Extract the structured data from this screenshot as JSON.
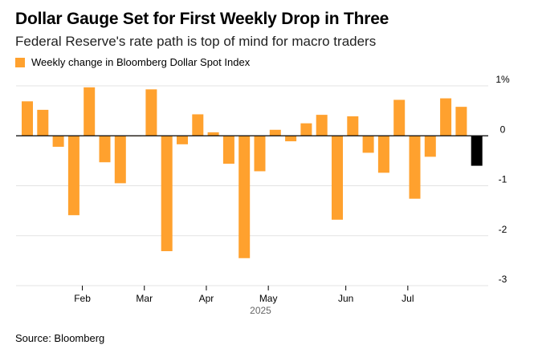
{
  "title": "Dollar Gauge Set for First Weekly Drop in Three",
  "subtitle": "Federal Reserve's rate path is top of mind for macro traders",
  "source": "Source: Bloomberg",
  "colors": {
    "positive": "#ffa12e",
    "latest": "#000000",
    "grid": "#e3e3e3",
    "zero": "#000000"
  },
  "chart_data": {
    "type": "bar",
    "legend": [
      "Weekly change in Bloomberg Dollar Spot Index"
    ],
    "legend_position": "top-left",
    "grid": true,
    "ylim": [
      -3,
      1
    ],
    "yticks": [
      {
        "value": 1,
        "label": "1%"
      },
      {
        "value": 0,
        "label": "0"
      },
      {
        "value": -1,
        "label": "-1"
      },
      {
        "value": -2,
        "label": "-2"
      },
      {
        "value": -3,
        "label": "-3"
      }
    ],
    "xticks": [
      "Feb",
      "Mar",
      "Apr",
      "May",
      "Jun",
      "Jul"
    ],
    "xtick_week_index": [
      4,
      8,
      12,
      16,
      21,
      25
    ],
    "year_label": "2025",
    "year_week_index": 15,
    "values": [
      0.69,
      0.52,
      -0.22,
      -1.59,
      0.97,
      -0.53,
      -0.95,
      0.0,
      0.93,
      -2.31,
      -0.17,
      0.43,
      0.07,
      -0.56,
      -2.45,
      -0.71,
      0.12,
      -0.11,
      0.25,
      0.42,
      -1.68,
      0.39,
      -0.34,
      -0.74,
      0.72,
      -1.26,
      -0.42,
      0.75,
      0.58,
      -0.6
    ],
    "highlight_last": true
  }
}
